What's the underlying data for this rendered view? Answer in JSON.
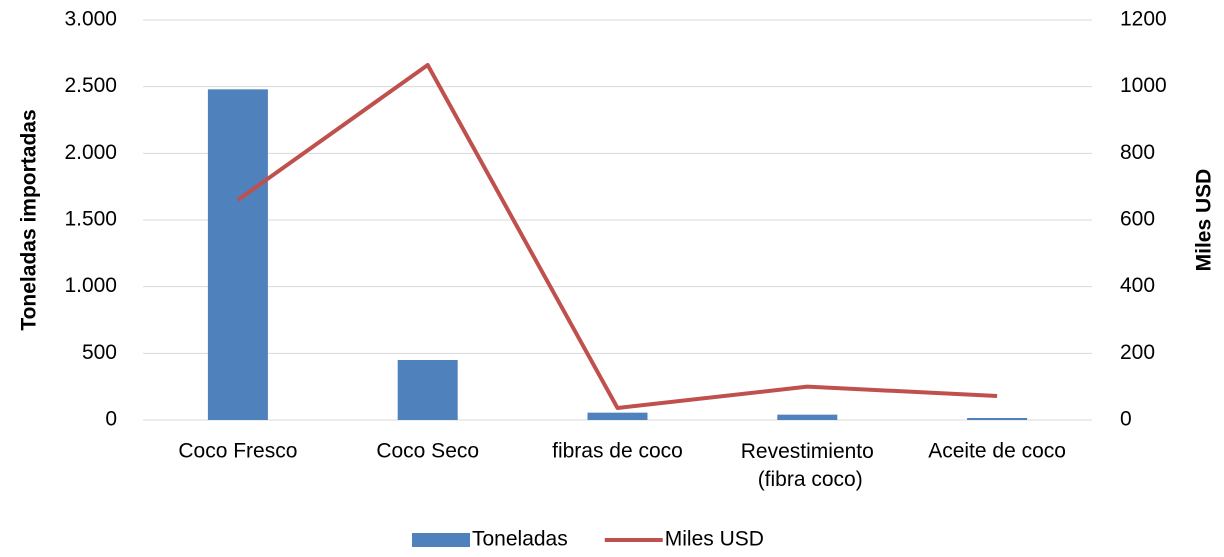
{
  "chart_data": {
    "type": "bar_line",
    "categories": [
      "Coco Fresco",
      "Coco Seco",
      "fibras de coco",
      "Revestimiento (fibra coco)",
      "Aceite de coco"
    ],
    "ylabel": "Toneladas importadas",
    "y2label": "Miles USD",
    "series": [
      {
        "name": "Toneladas",
        "type": "bar",
        "color": "#4f81bd",
        "values": [
          2480,
          450,
          55,
          40,
          15
        ]
      },
      {
        "name": "Miles USD",
        "type": "line",
        "axis": "y2",
        "color": "#c0504d",
        "values": [
          660,
          1065,
          36,
          100,
          72
        ]
      }
    ],
    "ylim": [
      0,
      3000
    ],
    "yticks": [
      0,
      500,
      {
        "value": 1000,
        "label": "1.000"
      },
      {
        "value": 1500,
        "label": "1.500"
      },
      {
        "value": 2000,
        "label": "2.000"
      },
      {
        "value": 2500,
        "label": "2.500"
      },
      {
        "value": 3000,
        "label": "3.000"
      }
    ],
    "y2lim": [
      0,
      1200
    ],
    "y2ticks": [
      0,
      200,
      400,
      600,
      800,
      1000,
      1200
    ],
    "grid": true,
    "legend": "bottom"
  }
}
